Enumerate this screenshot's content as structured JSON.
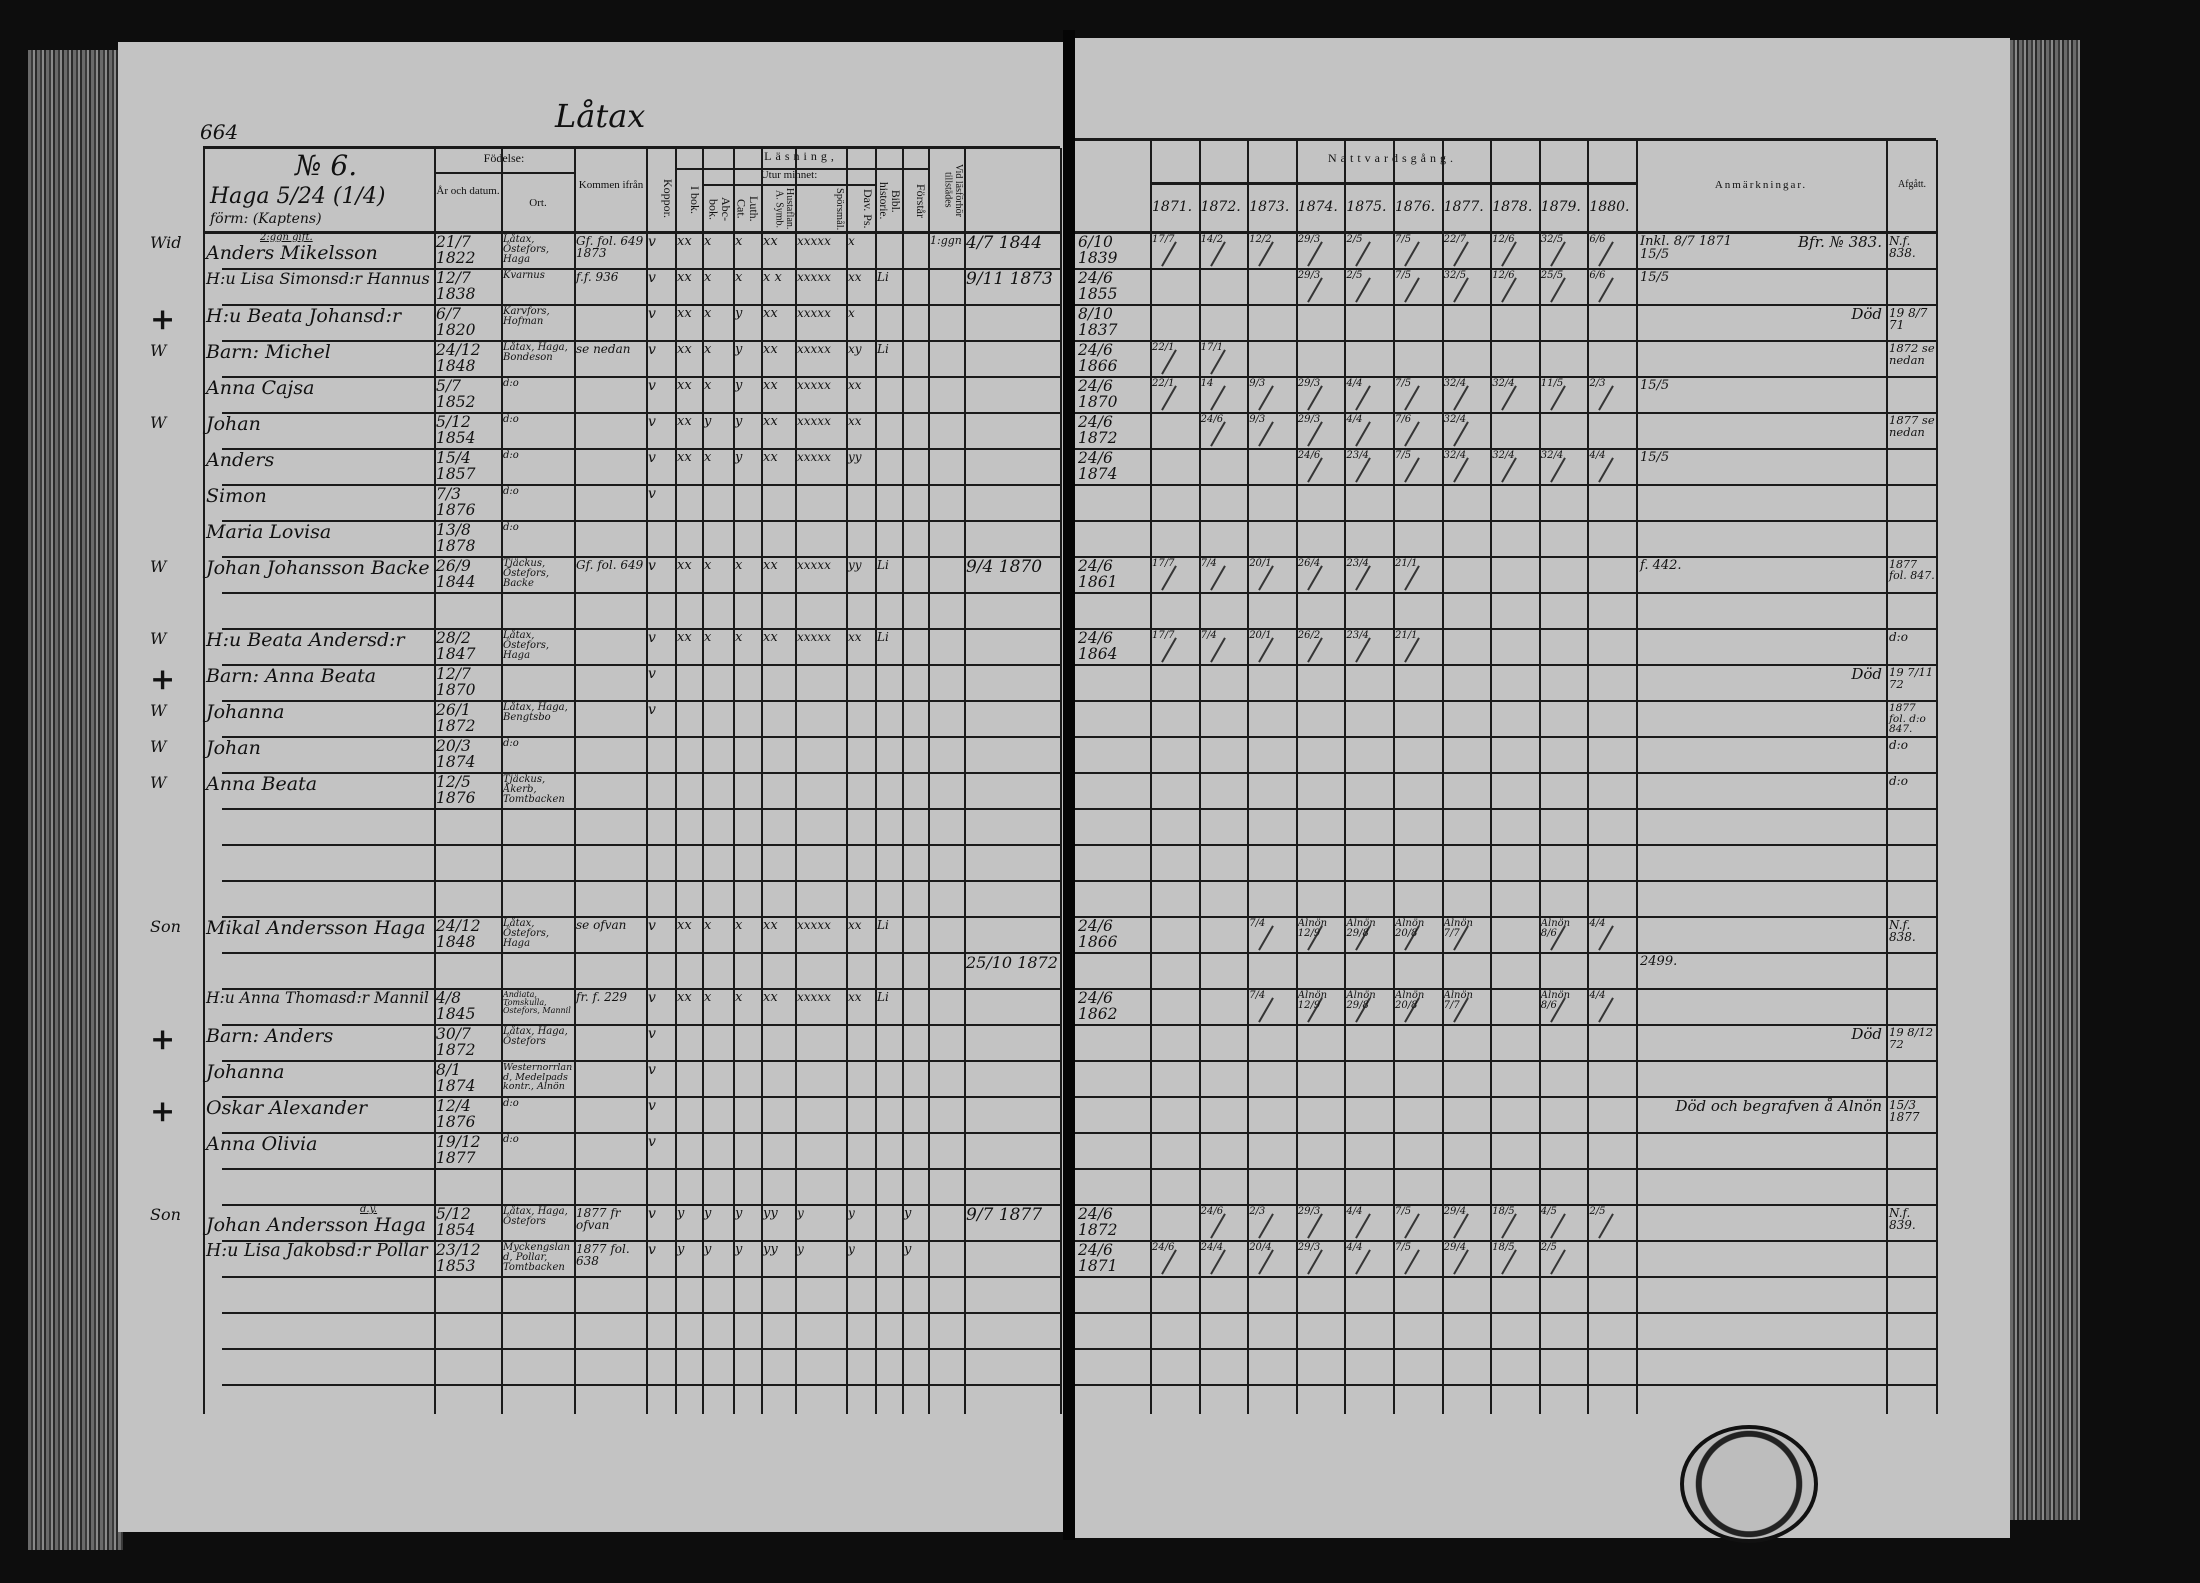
{
  "left_page": {
    "page_number": "664",
    "village": "Låtax",
    "household": {
      "number": "№ 6.",
      "farm": "Haga 5/24 (1/4)",
      "former": "förm: (Kaptens)"
    },
    "headers": {
      "fodelse": "Födelse:",
      "ar_datum": "År och datum.",
      "ort": "Ort.",
      "kommen": "Kommen ifrån",
      "koppor": "Koppor.",
      "lasning": "Läsning,",
      "i_bok": "I bok.",
      "utur_minnet": "Utur minnet:",
      "abc": "Abc-bok.",
      "luth": "Luth. Cat.",
      "hustaflan": "Hustaflan. A. Symb.",
      "sporsmal": "Spörsmål.",
      "dav": "Dav. Ps.",
      "bibl": "Bibl. historie.",
      "forstar": "Förstår",
      "tillstades": "Vid läsförhör tillstädes"
    }
  },
  "right_page": {
    "headers": {
      "nattvard": "Nattvardsgång.",
      "years": [
        "1871.",
        "1872.",
        "1873.",
        "1874.",
        "1875.",
        "1876.",
        "1877.",
        "1878.",
        "1879.",
        "1880."
      ],
      "anmarkningar": "Anmärkningar.",
      "afgatt": "Afgått."
    }
  },
  "rows": [
    {
      "mark": "Wid",
      "note": "2:ggn gift.",
      "name": "Anders Mikelsson",
      "birth": "21/7 1822",
      "place": "Låtax, Östefors, Haga",
      "from": "Gf. fol. 649 1873",
      "koppor": "v",
      "ibok": "xx",
      "abc": "x",
      "luth": "x",
      "hust": "xx",
      "spors": "xxxxx",
      "dav": "x",
      "bibl": "",
      "forstar": "",
      "tillst": "1:ggn",
      "extra": "4/7 1844",
      "first": "6/10 1839",
      "years": [
        "17/7",
        "14/2",
        "12/2",
        "29/3",
        "2/5",
        "7/5",
        "22/7",
        "12/6",
        "32/5",
        "6/6"
      ],
      "remark": "Inkl. 8/7 1871 15/5",
      "remark2": "Bfr. № 383.",
      "afgatt": "N.f. 838."
    },
    {
      "mark": "",
      "note": "",
      "name": "H:u Lisa Simonsd:r Hannus",
      "birth": "12/7 1838",
      "place": "Kvarnus",
      "from": "f.f. 936",
      "koppor": "v",
      "ibok": "xx",
      "abc": "x",
      "luth": "x",
      "hust": "x x",
      "spors": "xxxxx",
      "dav": "xx",
      "bibl": "Li",
      "forstar": "",
      "tillst": "",
      "extra": "9/11 1873",
      "first": "24/6 1855",
      "years": [
        "",
        "",
        "",
        "29/3",
        "2/5",
        "7/5",
        "32/5",
        "12/6",
        "25/5",
        "6/6"
      ],
      "remark": "15/5",
      "remark2": "",
      "afgatt": ""
    },
    {
      "mark": "+",
      "note": "",
      "name": "H:u Beata Johansd:r",
      "birth": "6/7 1820",
      "place": "Karvfors, Hofman",
      "from": "",
      "koppor": "v",
      "ibok": "xx",
      "abc": "x",
      "luth": "y",
      "hust": "xx",
      "spors": "xxxxx",
      "dav": "x",
      "bibl": "",
      "forstar": "",
      "tillst": "",
      "extra": "",
      "first": "8/10 1837",
      "years": [
        "",
        "",
        "",
        "",
        "",
        "",
        "",
        "",
        "",
        ""
      ],
      "remark": "",
      "remark2": "Död",
      "afgatt": "19 8/7 71"
    },
    {
      "mark": "W",
      "note": "",
      "name": "Barn: Michel",
      "birth": "24/12 1848",
      "place": "Låtax, Haga, Bondeson",
      "from": "se nedan",
      "koppor": "v",
      "ibok": "xx",
      "abc": "x",
      "luth": "y",
      "hust": "xx",
      "spors": "xxxxx",
      "dav": "xy",
      "bibl": "Li",
      "forstar": "",
      "tillst": "",
      "extra": "",
      "first": "24/6 1866",
      "years": [
        "22/1",
        "17/1",
        "",
        "",
        "",
        "",
        "",
        "",
        "",
        ""
      ],
      "remark": "",
      "remark2": "",
      "afgatt": "1872 se nedan"
    },
    {
      "mark": "",
      "note": "",
      "name": "Anna Cajsa",
      "birth": "5/7 1852",
      "place": "d:o",
      "from": "",
      "koppor": "v",
      "ibok": "xx",
      "abc": "x",
      "luth": "y",
      "hust": "xx",
      "spors": "xxxxx",
      "dav": "xx",
      "bibl": "",
      "forstar": "",
      "tillst": "",
      "extra": "",
      "first": "24/6 1870",
      "years": [
        "22/1",
        "14",
        "9/3",
        "29/3",
        "4/4",
        "7/5",
        "32/4",
        "32/4",
        "11/5",
        "2/3"
      ],
      "remark": "15/5",
      "remark2": "",
      "afgatt": ""
    },
    {
      "mark": "W",
      "note": "",
      "name": "Johan",
      "birth": "5/12 1854",
      "place": "d:o",
      "from": "",
      "koppor": "v",
      "ibok": "xx",
      "abc": "y",
      "luth": "y",
      "hust": "xx",
      "spors": "xxxxx",
      "dav": "xx",
      "bibl": "",
      "forstar": "",
      "tillst": "",
      "extra": "",
      "first": "24/6 1872",
      "years": [
        "",
        "24/6",
        "9/3",
        "29/3",
        "4/4",
        "7/6",
        "32/4",
        "",
        "",
        ""
      ],
      "remark": "",
      "remark2": "",
      "afgatt": "1877 se nedan"
    },
    {
      "mark": "",
      "note": "",
      "name": "Anders",
      "birth": "15/4 1857",
      "place": "d:o",
      "from": "",
      "koppor": "v",
      "ibok": "xx",
      "abc": "x",
      "luth": "y",
      "hust": "xx",
      "spors": "xxxxx",
      "dav": "yy",
      "bibl": "",
      "forstar": "",
      "tillst": "",
      "extra": "",
      "first": "24/6 1874",
      "years": [
        "",
        "",
        "",
        "24/6",
        "23/4",
        "7/5",
        "32/4",
        "32/4",
        "32/4",
        "4/4"
      ],
      "remark": "15/5",
      "remark2": "",
      "afgatt": ""
    },
    {
      "mark": "",
      "note": "",
      "name": "Simon",
      "birth": "7/3 1876",
      "place": "d:o",
      "from": "",
      "koppor": "v",
      "ibok": "",
      "abc": "",
      "luth": "",
      "hust": "",
      "spors": "",
      "dav": "",
      "bibl": "",
      "forstar": "",
      "tillst": "",
      "extra": "",
      "first": "",
      "years": [
        "",
        "",
        "",
        "",
        "",
        "",
        "",
        "",
        "",
        ""
      ],
      "remark": "",
      "remark2": "",
      "afgatt": ""
    },
    {
      "mark": "",
      "note": "",
      "name": "Maria Lovisa",
      "birth": "13/8 1878",
      "place": "d:o",
      "from": "",
      "koppor": "",
      "ibok": "",
      "abc": "",
      "luth": "",
      "hust": "",
      "spors": "",
      "dav": "",
      "bibl": "",
      "forstar": "",
      "tillst": "",
      "extra": "",
      "first": "",
      "years": [
        "",
        "",
        "",
        "",
        "",
        "",
        "",
        "",
        "",
        ""
      ],
      "remark": "",
      "remark2": "",
      "afgatt": ""
    },
    {
      "mark": "W",
      "note": "",
      "name": "Johan Johansson Backe",
      "birth": "26/9 1844",
      "place": "Tjäckus, Östefors, Backe",
      "from": "Gf. fol. 649",
      "koppor": "v",
      "ibok": "xx",
      "abc": "x",
      "luth": "x",
      "hust": "xx",
      "spors": "xxxxx",
      "dav": "yy",
      "bibl": "Li",
      "forstar": "",
      "tillst": "",
      "extra": "9/4 1870",
      "first": "24/6 1861",
      "years": [
        "17/7",
        "7/4",
        "20/1",
        "26/4",
        "23/4",
        "21/1",
        "",
        "",
        "",
        ""
      ],
      "remark": "f. 442.",
      "remark2": "",
      "afgatt": "1877 fol. 847."
    },
    {},
    {
      "mark": "W",
      "note": "",
      "name": "H:u Beata Andersd:r",
      "birth": "28/2 1847",
      "place": "Låtax, Östefors, Haga",
      "from": "",
      "koppor": "v",
      "ibok": "xx",
      "abc": "x",
      "luth": "x",
      "hust": "xx",
      "spors": "xxxxx",
      "dav": "xx",
      "bibl": "Li",
      "forstar": "",
      "tillst": "",
      "extra": "",
      "first": "24/6 1864",
      "years": [
        "17/7",
        "7/4",
        "20/1",
        "26/2",
        "23/4",
        "21/1",
        "",
        "",
        "",
        ""
      ],
      "remark": "",
      "remark2": "",
      "afgatt": "d:o"
    },
    {
      "mark": "+",
      "note": "",
      "name": "Barn: Anna Beata",
      "birth": "12/7 1870",
      "place": "",
      "from": "",
      "koppor": "v",
      "ibok": "",
      "abc": "",
      "luth": "",
      "hust": "",
      "spors": "",
      "dav": "",
      "bibl": "",
      "forstar": "",
      "tillst": "",
      "extra": "",
      "first": "",
      "years": [
        "",
        "",
        "",
        "",
        "",
        "",
        "",
        "",
        "",
        ""
      ],
      "remark": "",
      "remark2": "Död",
      "afgatt": "19 7/11 72"
    },
    {
      "mark": "W",
      "note": "",
      "name": "Johanna",
      "birth": "26/1 1872",
      "place": "Låtax, Haga, Bengtsbo",
      "from": "",
      "koppor": "v",
      "ibok": "",
      "abc": "",
      "luth": "",
      "hust": "",
      "spors": "",
      "dav": "",
      "bibl": "",
      "forstar": "",
      "tillst": "",
      "extra": "",
      "first": "",
      "years": [
        "",
        "",
        "",
        "",
        "",
        "",
        "",
        "",
        "",
        ""
      ],
      "remark": "",
      "remark2": "",
      "afgatt": "1877 fol. d:o 847."
    },
    {
      "mark": "W",
      "note": "",
      "name": "Johan",
      "birth": "20/3 1874",
      "place": "d:o",
      "from": "",
      "koppor": "",
      "ibok": "",
      "abc": "",
      "luth": "",
      "hust": "",
      "spors": "",
      "dav": "",
      "bibl": "",
      "forstar": "",
      "tillst": "",
      "extra": "",
      "first": "",
      "years": [
        "",
        "",
        "",
        "",
        "",
        "",
        "",
        "",
        "",
        ""
      ],
      "remark": "",
      "remark2": "",
      "afgatt": "d:o"
    },
    {
      "mark": "W",
      "note": "",
      "name": "Anna Beata",
      "birth": "12/5 1876",
      "place": "Tjäckus, Åkerb, Tomtbacken",
      "from": "",
      "koppor": "",
      "ibok": "",
      "abc": "",
      "luth": "",
      "hust": "",
      "spors": "",
      "dav": "",
      "bibl": "",
      "forstar": "",
      "tillst": "",
      "extra": "",
      "first": "",
      "years": [
        "",
        "",
        "",
        "",
        "",
        "",
        "",
        "",
        "",
        ""
      ],
      "remark": "",
      "remark2": "",
      "afgatt": "d:o"
    },
    {},
    {},
    {},
    {
      "mark": "Son",
      "note": "",
      "name": "Mikal Andersson Haga",
      "birth": "24/12 1848",
      "place": "Låtax, Östefors, Haga",
      "from": "se ofvan",
      "koppor": "v",
      "ibok": "xx",
      "abc": "x",
      "luth": "x",
      "hust": "xx",
      "spors": "xxxxx",
      "dav": "xx",
      "bibl": "Li",
      "forstar": "",
      "tillst": "",
      "extra": "",
      "first": "24/6 1866",
      "years": [
        "",
        "",
        "7/4",
        "Alnön 12/9",
        "Alnön 29/8",
        "Alnön 20/8",
        "Alnön 7/7",
        "",
        "Alnön 8/6",
        "4/4"
      ],
      "remark": "",
      "remark2": "",
      "afgatt": "N.f. 838."
    },
    {
      "mark": "",
      "note": "",
      "name": "",
      "birth": "",
      "place": "",
      "from": "",
      "koppor": "",
      "ibok": "",
      "abc": "",
      "luth": "",
      "hust": "",
      "spors": "",
      "dav": "",
      "bibl": "",
      "forstar": "",
      "tillst": "",
      "extra": "25/10 1872",
      "first": "",
      "years": [
        "",
        "",
        "",
        "",
        "",
        "",
        "",
        "",
        "",
        ""
      ],
      "remark": "2499.",
      "remark2": "",
      "afgatt": ""
    },
    {
      "mark": "",
      "note": "",
      "name": "H:u Anna Thomasd:r Mannil",
      "birth": "4/8 1845",
      "place": "Andiata, Tomskulla, Östefors, Mannil",
      "from": "fr. f. 229",
      "koppor": "v",
      "ibok": "xx",
      "abc": "x",
      "luth": "x",
      "hust": "xx",
      "spors": "xxxxx",
      "dav": "xx",
      "bibl": "Li",
      "forstar": "",
      "tillst": "",
      "extra": "",
      "first": "24/6 1862",
      "years": [
        "",
        "",
        "7/4",
        "Alnön 12/9",
        "Alnön 29/8",
        "Alnön 20/8",
        "Alnön 7/7",
        "",
        "Alnön 8/6",
        "4/4"
      ],
      "remark": "",
      "remark2": "",
      "afgatt": ""
    },
    {
      "mark": "+",
      "note": "",
      "name": "Barn: Anders",
      "birth": "30/7 1872",
      "place": "Låtax, Haga, Östefors",
      "from": "",
      "koppor": "v",
      "ibok": "",
      "abc": "",
      "luth": "",
      "hust": "",
      "spors": "",
      "dav": "",
      "bibl": "",
      "forstar": "",
      "tillst": "",
      "extra": "",
      "first": "",
      "years": [
        "",
        "",
        "",
        "",
        "",
        "",
        "",
        "",
        "",
        ""
      ],
      "remark": "",
      "remark2": "Död",
      "afgatt": "19 8/12 72"
    },
    {
      "mark": "",
      "note": "",
      "name": "Johanna",
      "birth": "8/1 1874",
      "place": "Westernorrland, Medelpads kontr., Alnön",
      "from": "",
      "koppor": "v",
      "ibok": "",
      "abc": "",
      "luth": "",
      "hust": "",
      "spors": "",
      "dav": "",
      "bibl": "",
      "forstar": "",
      "tillst": "",
      "extra": "",
      "first": "",
      "years": [
        "",
        "",
        "",
        "",
        "",
        "",
        "",
        "",
        "",
        ""
      ],
      "remark": "",
      "remark2": "",
      "afgatt": ""
    },
    {
      "mark": "+",
      "note": "",
      "name": "Oskar Alexander",
      "birth": "12/4 1876",
      "place": "d:o",
      "from": "",
      "koppor": "v",
      "ibok": "",
      "abc": "",
      "luth": "",
      "hust": "",
      "spors": "",
      "dav": "",
      "bibl": "",
      "forstar": "",
      "tillst": "",
      "extra": "",
      "first": "",
      "years": [
        "",
        "",
        "",
        "",
        "",
        "",
        "",
        "",
        "",
        ""
      ],
      "remark": "",
      "remark2": "Död och begrafven å Alnön",
      "afgatt": "15/3 1877"
    },
    {
      "mark": "",
      "note": "",
      "name": "Anna Olivia",
      "birth": "19/12 1877",
      "place": "d:o",
      "from": "",
      "koppor": "v",
      "ibok": "",
      "abc": "",
      "luth": "",
      "hust": "",
      "spors": "",
      "dav": "",
      "bibl": "",
      "forstar": "",
      "tillst": "",
      "extra": "",
      "first": "",
      "years": [
        "",
        "",
        "",
        "",
        "",
        "",
        "",
        "",
        "",
        ""
      ],
      "remark": "",
      "remark2": "",
      "afgatt": ""
    },
    {},
    {
      "mark": "Son",
      "note": "d.y.",
      "name": "Johan Andersson Haga",
      "birth": "5/12 1854",
      "place": "Låtax, Haga, Östefors",
      "from": "1877 fr ofvan",
      "koppor": "v",
      "ibok": "y",
      "abc": "y",
      "luth": "y",
      "hust": "yy",
      "spors": "y",
      "dav": "y",
      "bibl": "",
      "forstar": "y",
      "tillst": "",
      "extra": "9/7 1877",
      "first": "24/6 1872",
      "years": [
        "",
        "24/6",
        "2/3",
        "29/3",
        "4/4",
        "7/5",
        "29/4",
        "18/5",
        "4/5",
        "2/5"
      ],
      "remark": "",
      "remark2": "",
      "afgatt": "N.f. 839."
    },
    {
      "mark": "",
      "note": "",
      "name": "H:u Lisa Jakobsd:r Pollar",
      "birth": "23/12 1853",
      "place": "Myckengsland, Pollar, Tomtbacken",
      "from": "1877 fol. 638",
      "koppor": "v",
      "ibok": "y",
      "abc": "y",
      "luth": "y",
      "hust": "yy",
      "spors": "y",
      "dav": "y",
      "bibl": "",
      "forstar": "y",
      "tillst": "",
      "extra": "",
      "first": "24/6 1871",
      "years": [
        "24/6",
        "24/4",
        "20/4",
        "29/3",
        "4/4",
        "7/5",
        "29/4",
        "18/5",
        "2/5",
        ""
      ],
      "remark": "",
      "remark2": "",
      "afgatt": ""
    },
    {},
    {},
    {}
  ]
}
